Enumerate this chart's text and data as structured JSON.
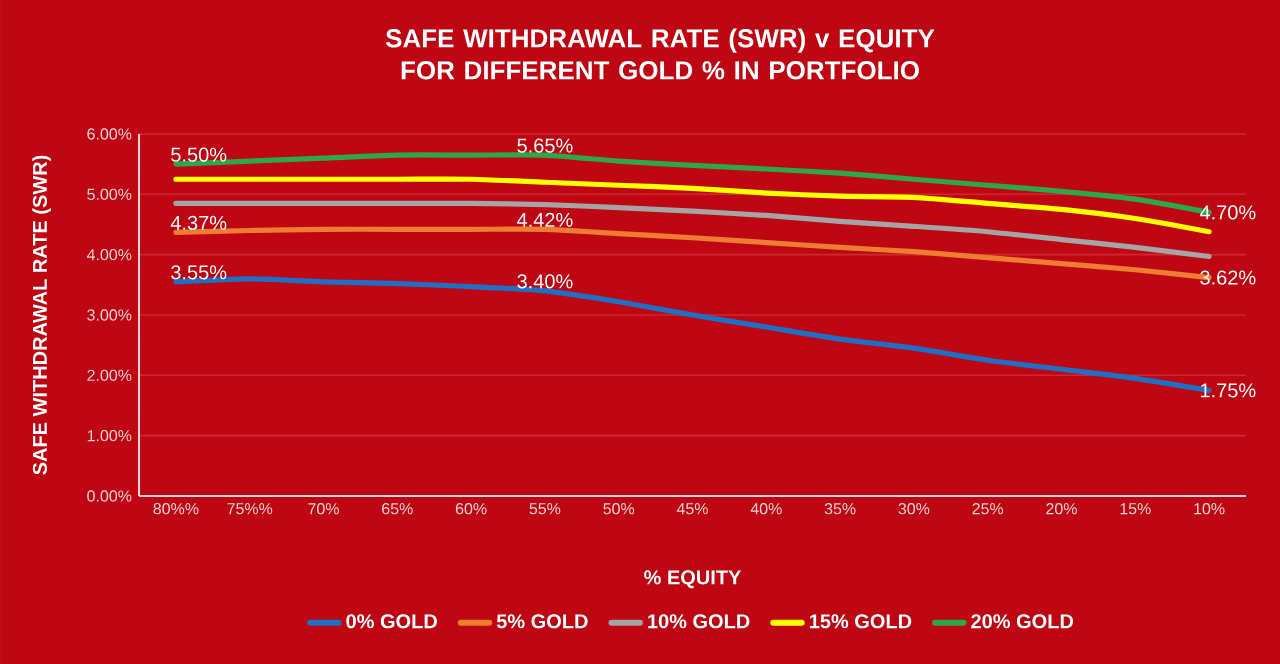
{
  "chart_data": {
    "type": "line",
    "title": "SAFE WITHDRAWAL RATE (SWR) v EQUITY FOR DIFFERENT GOLD % IN PORTFOLIO",
    "xlabel": "% EQUITY",
    "ylabel": "SAFE WITHDRAWAL RATE (SWR)",
    "categories": [
      "80%%",
      "75%%",
      "70%",
      "65%",
      "60%",
      "55%",
      "50%",
      "45%",
      "40%",
      "35%",
      "30%",
      "25%",
      "20%",
      "15%",
      "10%"
    ],
    "ylim": [
      0,
      6
    ],
    "yticks": [
      {
        "value": 0,
        "label": "0.00%"
      },
      {
        "value": 1,
        "label": "1.00%"
      },
      {
        "value": 2,
        "label": "2.00%"
      },
      {
        "value": 3,
        "label": "3.00%"
      },
      {
        "value": 4,
        "label": "4.00%"
      },
      {
        "value": 5,
        "label": "5.00%"
      },
      {
        "value": 6,
        "label": "6.00%"
      }
    ],
    "grid": "y",
    "legend": "bottom",
    "series": [
      {
        "name": "0% GOLD",
        "color": "#1f6fc5",
        "values": [
          3.55,
          3.6,
          3.55,
          3.52,
          3.47,
          3.4,
          3.22,
          3.0,
          2.8,
          2.6,
          2.45,
          2.25,
          2.1,
          1.95,
          1.75
        ],
        "value_labels": [
          "3.55%",
          null,
          null,
          null,
          null,
          "3.40%",
          null,
          null,
          null,
          null,
          null,
          null,
          null,
          null,
          "1.75%"
        ]
      },
      {
        "name": "5% GOLD",
        "color": "#ed7d31",
        "values": [
          4.37,
          4.4,
          4.42,
          4.42,
          4.42,
          4.42,
          4.35,
          4.28,
          4.2,
          4.12,
          4.05,
          3.95,
          3.85,
          3.75,
          3.62
        ],
        "value_labels": [
          "4.37%",
          null,
          null,
          null,
          null,
          "4.42%",
          null,
          null,
          null,
          null,
          null,
          null,
          null,
          null,
          "3.62%"
        ]
      },
      {
        "name": "10% GOLD",
        "color": "#a5a5a5",
        "values": [
          4.85,
          4.85,
          4.85,
          4.85,
          4.85,
          4.83,
          4.78,
          4.72,
          4.65,
          4.55,
          4.47,
          4.38,
          4.25,
          4.12,
          3.97
        ]
      },
      {
        "name": "15% GOLD",
        "color": "#ffff00",
        "values": [
          5.25,
          5.25,
          5.25,
          5.25,
          5.25,
          5.2,
          5.15,
          5.1,
          5.02,
          4.97,
          4.95,
          4.85,
          4.75,
          4.6,
          4.38
        ]
      },
      {
        "name": "20% GOLD",
        "color": "#2ca84a",
        "values": [
          5.5,
          5.55,
          5.6,
          5.65,
          5.65,
          5.65,
          5.55,
          5.48,
          5.42,
          5.35,
          5.25,
          5.15,
          5.05,
          4.92,
          4.7
        ],
        "value_labels": [
          "5.50%",
          null,
          null,
          null,
          null,
          "5.65%",
          null,
          null,
          null,
          null,
          null,
          null,
          null,
          null,
          "4.70%"
        ]
      }
    ]
  }
}
